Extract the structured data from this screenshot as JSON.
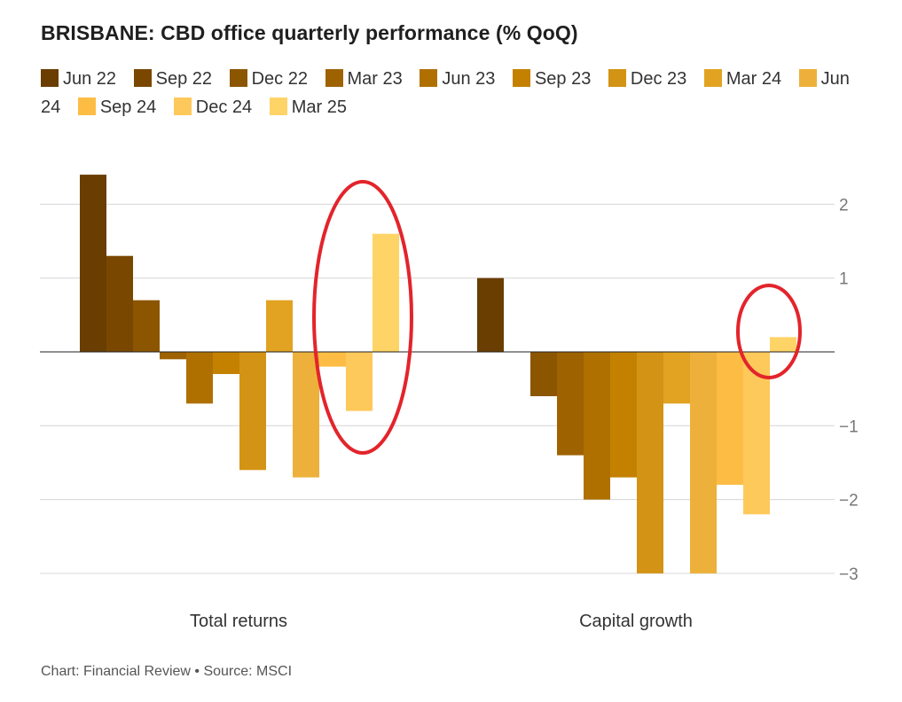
{
  "title": "BRISBANE: CBD office quarterly performance (% QoQ)",
  "source": "Chart: Financial Review • Source: MSCI",
  "colors": [
    "#6a3d00",
    "#7a4700",
    "#8c5500",
    "#9e6200",
    "#b07000",
    "#c48100",
    "#d39314",
    "#e1a321",
    "#edb03a",
    "#fdbd45",
    "#fec95b",
    "#ffd466"
  ],
  "annotation_color": "#e3242b",
  "chart_data": {
    "type": "bar",
    "title": "BRISBANE: CBD office quarterly performance (% QoQ)",
    "categories": [
      "Total returns",
      "Capital growth"
    ],
    "series": [
      {
        "name": "Jun 22",
        "values": [
          2.4,
          1.0
        ]
      },
      {
        "name": "Sep 22",
        "values": [
          1.3,
          0
        ]
      },
      {
        "name": "Dec 22",
        "values": [
          0.7,
          -0.6
        ]
      },
      {
        "name": "Mar 23",
        "values": [
          -0.1,
          -1.4
        ]
      },
      {
        "name": "Jun 23",
        "values": [
          -0.7,
          -2.0
        ]
      },
      {
        "name": "Sep 23",
        "values": [
          -0.3,
          -1.7
        ]
      },
      {
        "name": "Dec 23",
        "values": [
          -1.6,
          -3.0
        ]
      },
      {
        "name": "Mar 24",
        "values": [
          0.7,
          -0.7
        ]
      },
      {
        "name": "Jun 24",
        "values": [
          -1.7,
          -3.0
        ]
      },
      {
        "name": "Sep 24",
        "values": [
          -0.2,
          -1.8
        ]
      },
      {
        "name": "Dec 24",
        "values": [
          -0.8,
          -2.2
        ]
      },
      {
        "name": "Mar 25",
        "values": [
          1.6,
          0.2
        ]
      }
    ],
    "yticks": [
      2,
      1,
      -1,
      -2,
      -3
    ],
    "ytick_labels": [
      "2",
      "1",
      "−1",
      "−2",
      "−3"
    ],
    "ylim": [
      -3,
      2.4
    ],
    "grid": true,
    "legend": "top",
    "highlighted": "Mar 25"
  }
}
